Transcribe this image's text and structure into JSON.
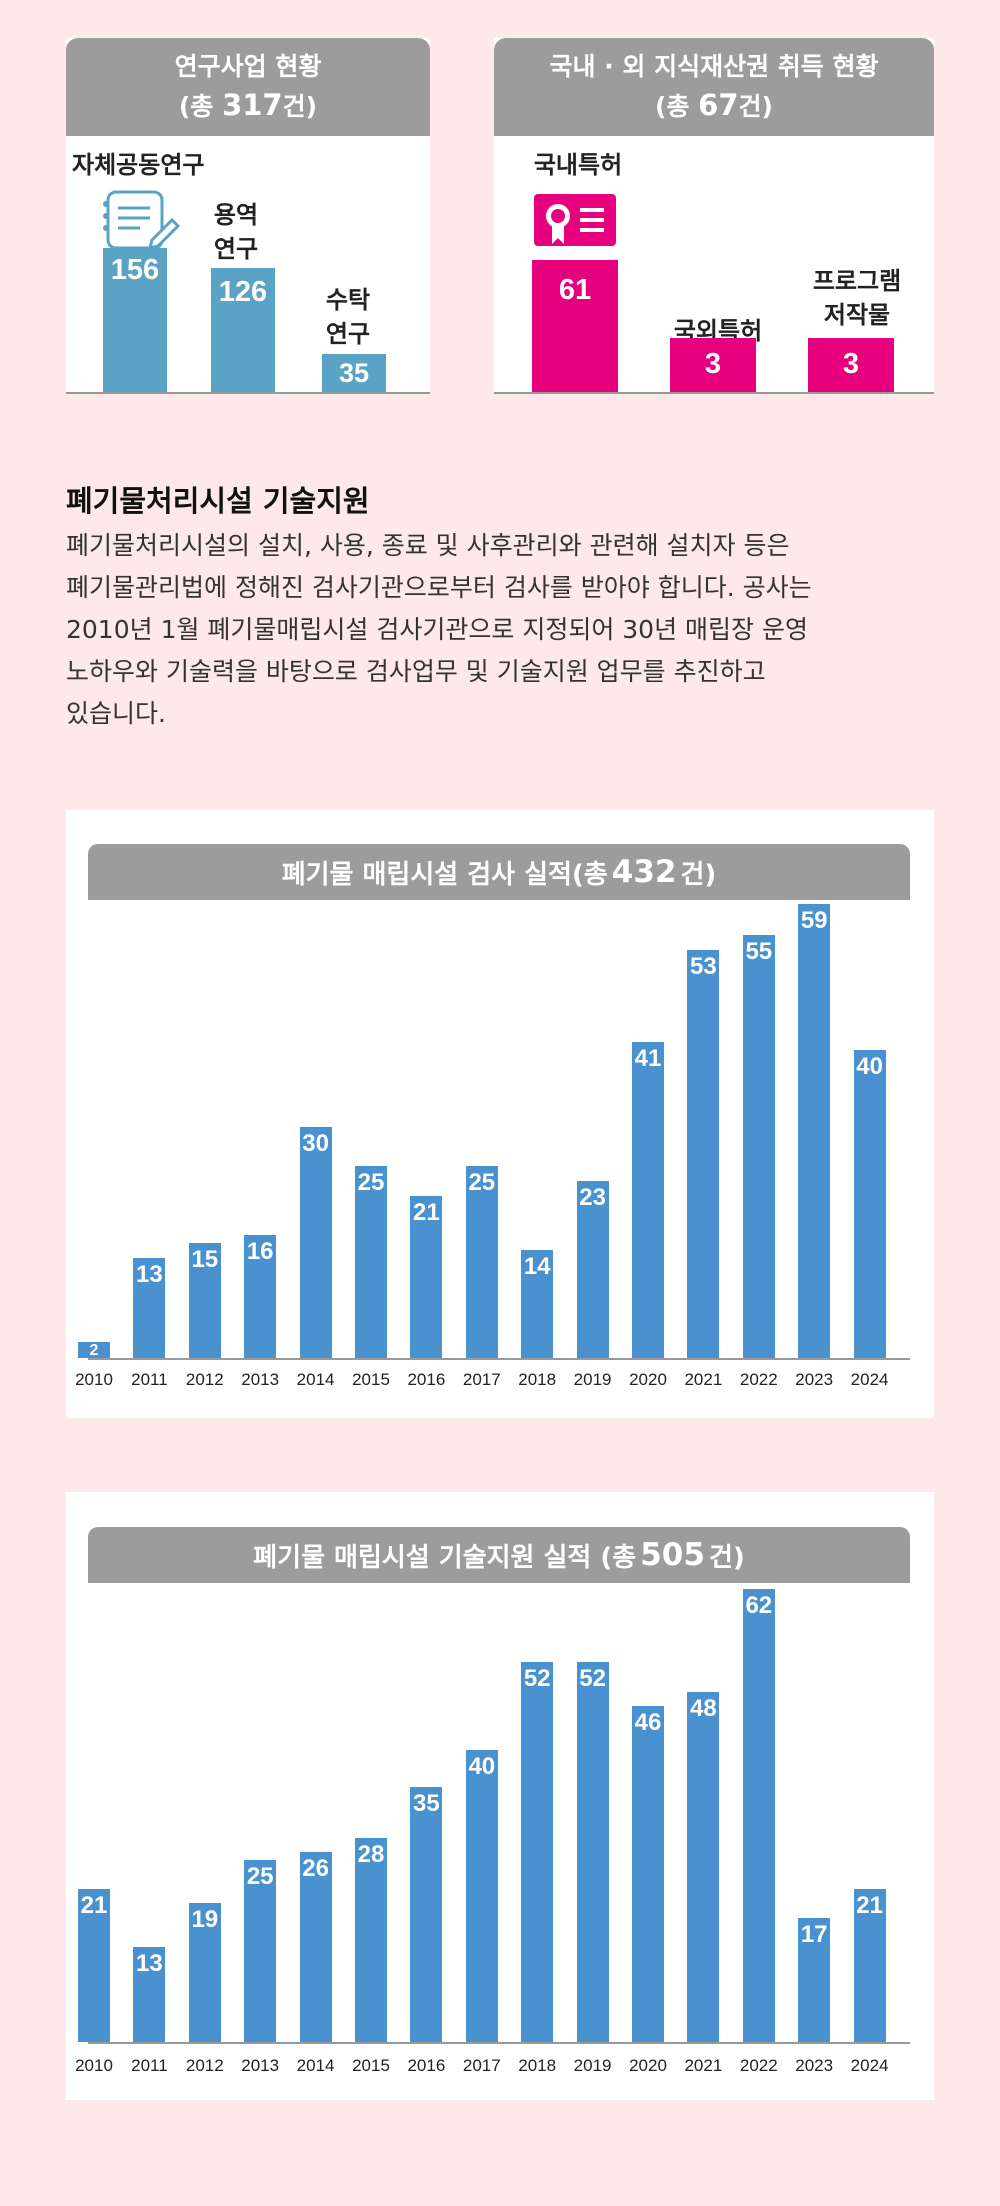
{
  "research": {
    "title": "연구사업 현황",
    "total_prefix": "(총",
    "total": "317",
    "total_suffix": "건)",
    "items": [
      {
        "label_lines": [
          "자체공동연구"
        ],
        "value": 156
      },
      {
        "label_lines": [
          "용역",
          "연구"
        ],
        "value": 126
      },
      {
        "label_lines": [
          "수탁",
          "연구"
        ],
        "value": 35
      }
    ],
    "color": "#5ba3c4"
  },
  "ip": {
    "title": "국내 · 외 지식재산권 취득 현황",
    "total_prefix": "(총",
    "total": "67",
    "total_suffix": "건)",
    "items": [
      {
        "label_lines": [
          "국내특허"
        ],
        "value": 61
      },
      {
        "label_lines": [
          "국외특허"
        ],
        "value": 3
      },
      {
        "label_lines": [
          "프로그램",
          "저작물"
        ],
        "value": 3
      }
    ],
    "color": "#e6007e"
  },
  "section": {
    "title": "폐기물처리시설 기술지원",
    "lines": [
      "폐기물처리시설의 설치, 사용, 종료 및 사후관리와 관련해 설치자 등은",
      "폐기물관리법에 정해진 검사기관으로부터 검사를 받아야 합니다. 공사는",
      "2010년 1월 폐기물매립시설 검사기관으로 지정되어 30년 매립장 운영",
      "노하우와 기술력을 바탕으로 검사업무 및 기술지원 업무를 추진하고",
      "있습니다."
    ]
  },
  "chart_data": [
    {
      "type": "bar",
      "title": "폐기물 매립시설 검사 실적(총 432 건)",
      "title_main": "폐기물 매립시설 검사 실적(총",
      "title_total": "432",
      "title_suffix": "건)",
      "categories": [
        "2010",
        "2011",
        "2012",
        "2013",
        "2014",
        "2015",
        "2016",
        "2017",
        "2018",
        "2019",
        "2020",
        "2021",
        "2022",
        "2023",
        "2024"
      ],
      "values": [
        2,
        13,
        15,
        16,
        30,
        25,
        21,
        25,
        14,
        23,
        41,
        53,
        55,
        59,
        40
      ],
      "color": "#4a92cf"
    },
    {
      "type": "bar",
      "title": "폐기물 매립시설 기술지원 실적 (총 505 건)",
      "title_main": "폐기물 매립시설 기술지원 실적 (총",
      "title_total": "505",
      "title_suffix": "건)",
      "categories": [
        "2010",
        "2011",
        "2012",
        "2013",
        "2014",
        "2015",
        "2016",
        "2017",
        "2018",
        "2019",
        "2020",
        "2021",
        "2022",
        "2023",
        "2024"
      ],
      "values": [
        21,
        13,
        19,
        25,
        26,
        28,
        35,
        40,
        52,
        52,
        46,
        48,
        62,
        17,
        21
      ],
      "color": "#4a92cf"
    }
  ]
}
